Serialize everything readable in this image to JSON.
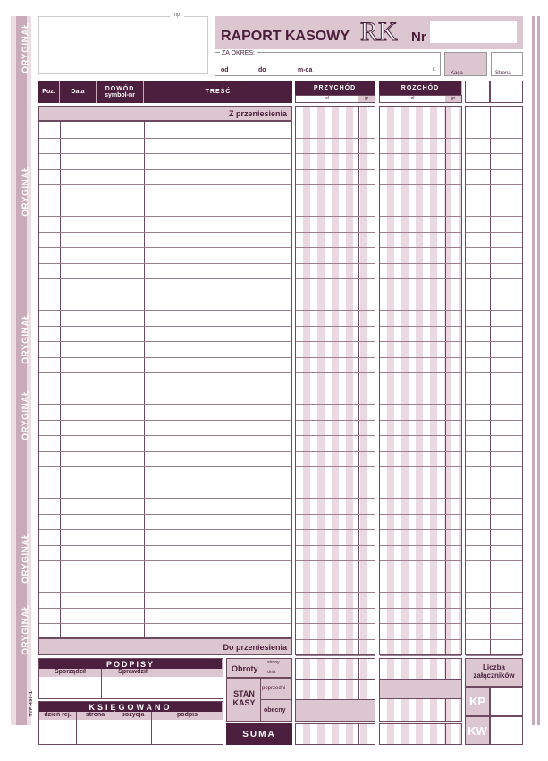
{
  "side_label": "ORYGINAŁ",
  "side_footer": "TYP-490-1",
  "stamp_label": "mp.",
  "title": "RAPORT KASOWY",
  "logo": "RK",
  "nr_label": "Nr",
  "period": {
    "label": "ZA OKRES:",
    "od": "od",
    "do": "do",
    "mca": "m-ca",
    "r": "r."
  },
  "kasa_label": "Kasa",
  "strona_label": "Strona",
  "columns": {
    "poz": "Poz.",
    "data": "Data",
    "dowod": "DOWÓD",
    "dowod_sub": "symbol-nr",
    "tresc": "TREŚĆ",
    "przychod": "PRZYCHÓD",
    "rozchod": "ROZCHÓD",
    "zl": "zł",
    "gr": "gr"
  },
  "z_przeniesienia": "Z przeniesienia",
  "do_przeniesienia": "Do przeniesienia",
  "podpisy": {
    "title": "PODPISY",
    "sporzadzil": "Sporządził",
    "sprawdzil": "Sprawdził"
  },
  "ksiegowano": {
    "title": "KSIĘGOWANO",
    "dzien": "dzień rej.",
    "strona": "strona",
    "pozycja": "pozycja",
    "podpis": "podpis"
  },
  "obroty": {
    "label": "Obroty",
    "strony": "strony",
    "dnia": "dnia"
  },
  "stan_kasy": {
    "label": "STAN KASY",
    "poprzedni": "poprzedni",
    "obecny": "obecny"
  },
  "suma": "SUMA",
  "liczba_zalacznikow": "Liczba załączników",
  "kp": "KP",
  "kw": "KW",
  "colors": {
    "dark": "#4b1f3d",
    "pink": "#dcc7d0"
  }
}
